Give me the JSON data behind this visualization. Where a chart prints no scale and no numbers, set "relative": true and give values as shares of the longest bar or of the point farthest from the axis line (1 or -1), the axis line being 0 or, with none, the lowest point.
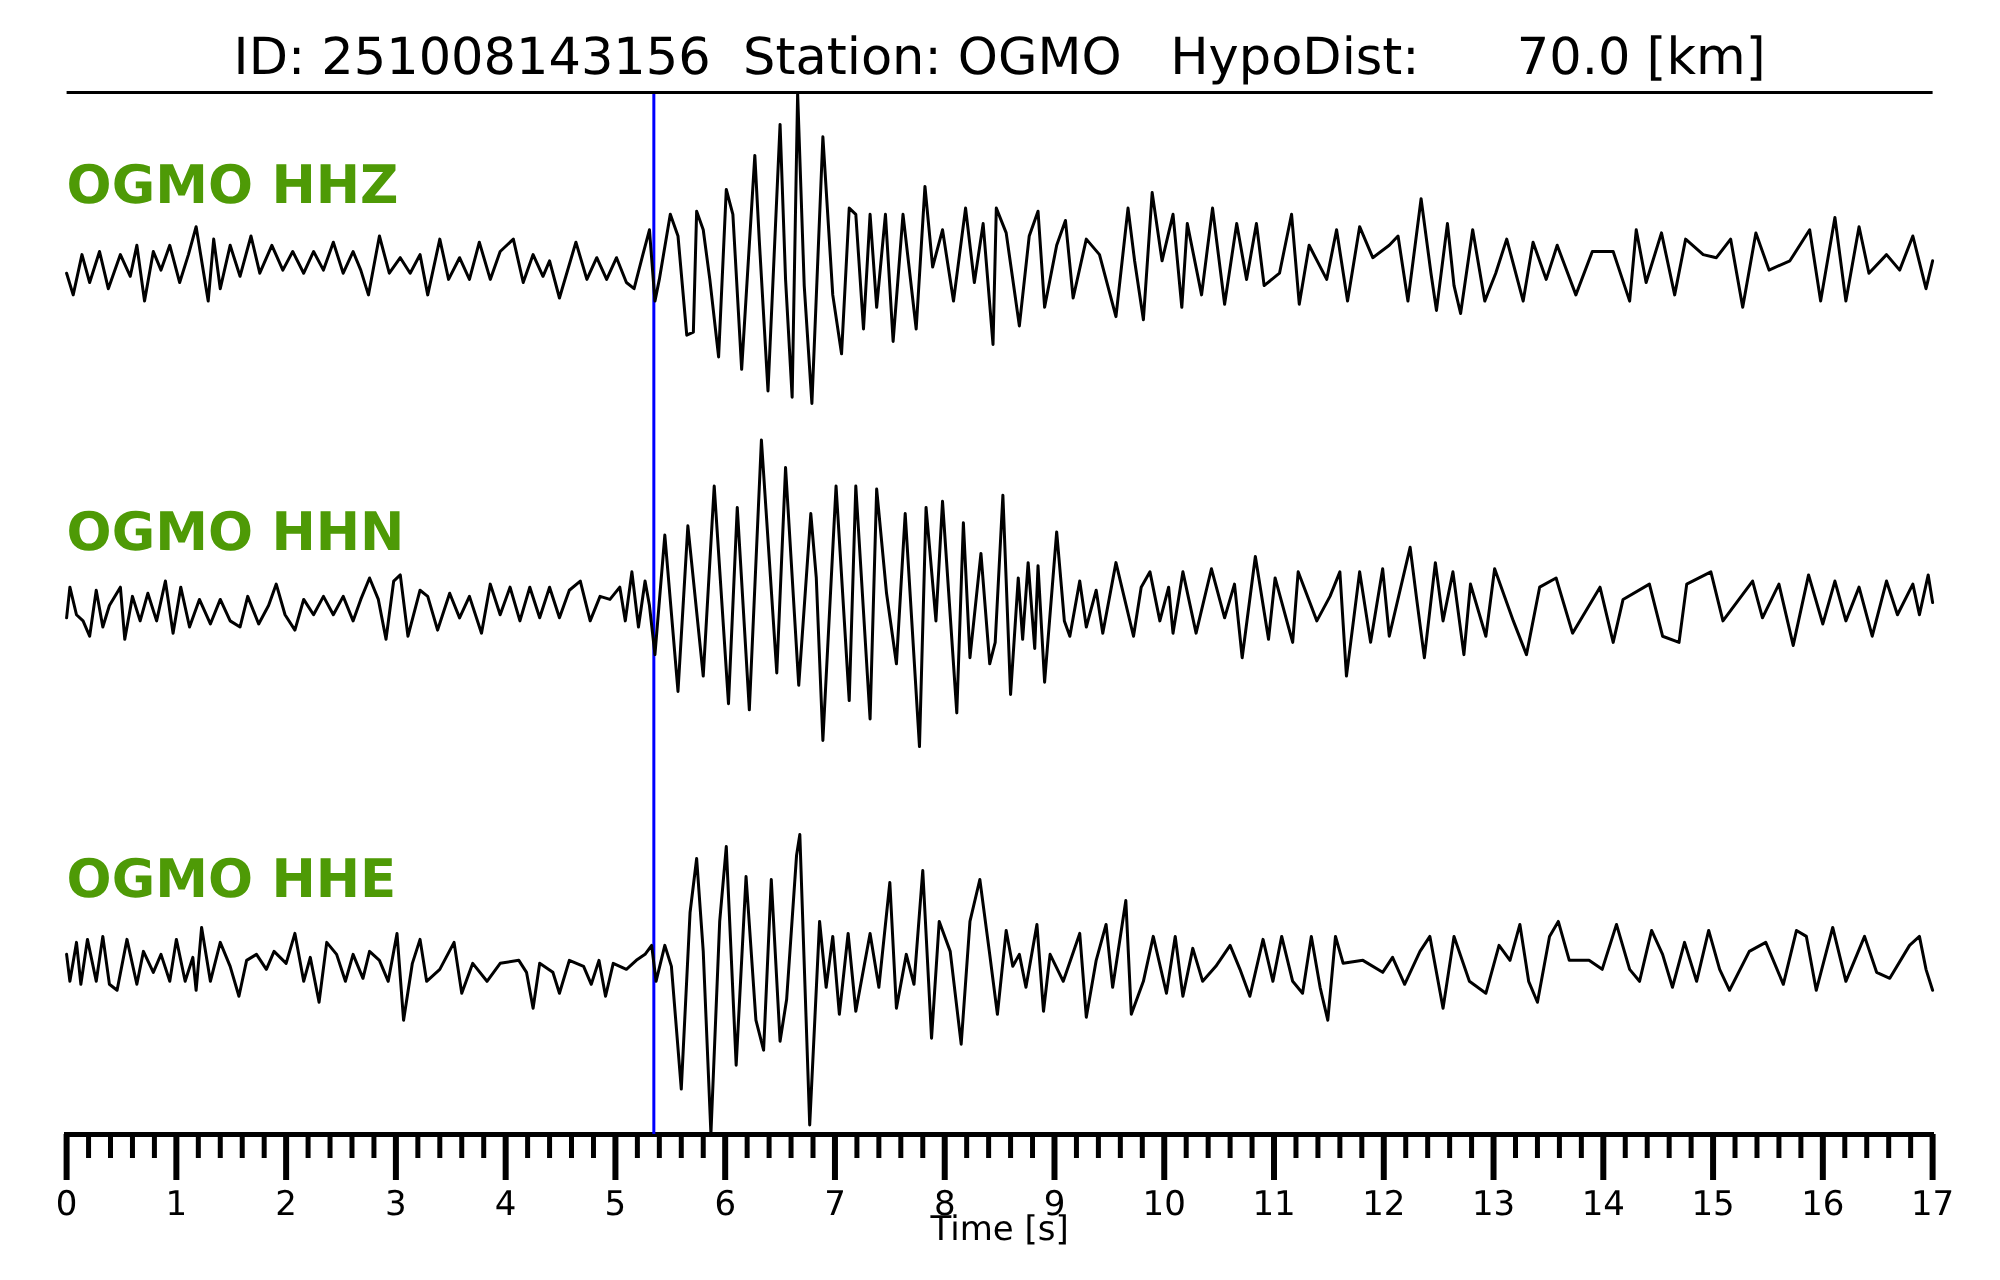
{
  "chart_data": [
    {
      "type": "line",
      "title": "ID: 251008143156  Station: OGMO   HypoDist:      70.0 [km]",
      "relative": true,
      "xlim": [
        0,
        17
      ],
      "tick_labels": false,
      "ref_lines": [
        {
          "axis": "x",
          "value": 5.35,
          "color": "#0000ff"
        }
      ],
      "series": [
        {
          "name": "OGMO HHZ",
          "color": "#000000",
          "x": [
            0,
            0.06,
            0.14,
            0.21,
            0.3,
            0.38,
            0.49,
            0.58,
            0.64,
            0.71,
            0.79,
            0.86,
            0.94,
            1.03,
            1.11,
            1.18,
            1.29,
            1.34,
            1.4,
            1.49,
            1.58,
            1.68,
            1.76,
            1.87,
            1.97,
            2.06,
            2.16,
            2.25,
            2.34,
            2.43,
            2.52,
            2.61,
            2.68,
            2.75,
            2.85,
            2.94,
            3.04,
            3.13,
            3.22,
            3.29,
            3.4,
            3.48,
            3.58,
            3.67,
            3.76,
            3.86,
            3.95,
            4.07,
            4.16,
            4.25,
            4.34,
            4.4,
            4.49,
            4.64,
            4.74,
            4.83,
            4.92,
            5.01,
            5.1,
            5.17,
            5.25,
            5.31,
            5.36,
            5.4,
            5.5,
            5.57,
            5.65,
            5.71,
            5.74,
            5.8,
            5.86,
            5.94,
            6.01,
            6.07,
            6.15,
            6.27,
            6.31,
            6.39,
            6.5,
            6.55,
            6.61,
            6.66,
            6.72,
            6.79,
            6.89,
            6.98,
            7.06,
            7.13,
            7.19,
            7.26,
            7.32,
            7.38,
            7.46,
            7.53,
            7.62,
            7.74,
            7.82,
            7.89,
            7.98,
            8.08,
            8.19,
            8.27,
            8.35,
            8.44,
            8.47,
            8.56,
            8.68,
            8.77,
            8.85,
            8.91,
            9.02,
            9.1,
            9.17,
            9.29,
            9.41,
            9.56,
            9.67,
            9.73,
            9.81,
            9.89,
            9.98,
            10.08,
            10.16,
            10.21,
            10.34,
            10.44,
            10.55,
            10.66,
            10.75,
            10.84,
            10.91,
            11.05,
            11.16,
            11.23,
            11.32,
            11.48,
            11.57,
            11.67,
            11.78,
            11.9,
            12.05,
            12.13,
            12.22,
            12.34,
            12.43,
            12.48,
            12.58,
            12.64,
            12.7,
            12.81,
            12.92,
            13.02,
            13.12,
            13.27,
            13.36,
            13.48,
            13.58,
            13.75,
            13.9,
            14.09,
            14.24,
            14.3,
            14.39,
            14.53,
            14.65,
            14.75,
            14.91,
            15.03,
            15.16,
            15.27,
            15.39,
            15.51,
            15.7,
            15.88,
            15.98,
            16.11,
            16.21,
            16.33,
            16.42,
            16.58,
            16.7,
            16.82,
            16.94,
            17
          ],
          "values": [
            0.42,
            0.35,
            0.48,
            0.39,
            0.49,
            0.37,
            0.48,
            0.41,
            0.51,
            0.33,
            0.49,
            0.43,
            0.51,
            0.39,
            0.48,
            0.57,
            0.33,
            0.53,
            0.37,
            0.51,
            0.41,
            0.54,
            0.42,
            0.51,
            0.43,
            0.49,
            0.42,
            0.49,
            0.43,
            0.52,
            0.42,
            0.49,
            0.43,
            0.35,
            0.54,
            0.42,
            0.47,
            0.42,
            0.48,
            0.35,
            0.53,
            0.4,
            0.47,
            0.4,
            0.52,
            0.4,
            0.49,
            0.53,
            0.39,
            0.48,
            0.41,
            0.46,
            0.34,
            0.52,
            0.4,
            0.47,
            0.4,
            0.47,
            0.39,
            0.37,
            0.48,
            0.56,
            0.33,
            0.4,
            0.61,
            0.54,
            0.22,
            0.23,
            0.62,
            0.56,
            0.4,
            0.15,
            0.69,
            0.61,
            0.11,
            0.8,
            0.53,
            0.04,
            0.9,
            0.4,
            0.02,
            1,
            0.38,
            0,
            0.86,
            0.35,
            0.16,
            0.63,
            0.61,
            0.24,
            0.61,
            0.31,
            0.61,
            0.2,
            0.61,
            0.24,
            0.7,
            0.44,
            0.56,
            0.33,
            0.63,
            0.39,
            0.58,
            0.19,
            0.63,
            0.55,
            0.25,
            0.54,
            0.62,
            0.31,
            0.51,
            0.59,
            0.34,
            0.53,
            0.48,
            0.28,
            0.63,
            0.46,
            0.27,
            0.68,
            0.46,
            0.61,
            0.31,
            0.58,
            0.35,
            0.63,
            0.32,
            0.58,
            0.4,
            0.58,
            0.38,
            0.42,
            0.61,
            0.32,
            0.51,
            0.4,
            0.56,
            0.33,
            0.57,
            0.47,
            0.51,
            0.54,
            0.33,
            0.66,
            0.42,
            0.3,
            0.58,
            0.38,
            0.29,
            0.56,
            0.33,
            0.42,
            0.53,
            0.33,
            0.52,
            0.4,
            0.51,
            0.35,
            0.49,
            0.49,
            0.33,
            0.56,
            0.39,
            0.55,
            0.35,
            0.53,
            0.48,
            0.47,
            0.53,
            0.31,
            0.55,
            0.43,
            0.46,
            0.56,
            0.33,
            0.6,
            0.33,
            0.57,
            0.42,
            0.48,
            0.43,
            0.54,
            0.37,
            0.46
          ]
        }
      ]
    },
    {
      "type": "line",
      "relative": true,
      "xlim": [
        0,
        17
      ],
      "tick_labels": false,
      "ref_lines": [
        {
          "axis": "x",
          "value": 5.35,
          "color": "#0000ff"
        }
      ],
      "series": [
        {
          "name": "OGMO HHN",
          "color": "#000000",
          "x": [
            0,
            0.03,
            0.09,
            0.15,
            0.21,
            0.27,
            0.33,
            0.39,
            0.49,
            0.53,
            0.6,
            0.67,
            0.74,
            0.82,
            0.9,
            0.97,
            1.04,
            1.12,
            1.21,
            1.31,
            1.4,
            1.49,
            1.58,
            1.65,
            1.75,
            1.84,
            1.91,
            1.99,
            2.08,
            2.16,
            2.25,
            2.34,
            2.43,
            2.52,
            2.61,
            2.68,
            2.76,
            2.84,
            2.91,
            2.98,
            3.04,
            3.11,
            3.22,
            3.29,
            3.38,
            3.49,
            3.58,
            3.67,
            3.78,
            3.86,
            3.95,
            4.04,
            4.13,
            4.22,
            4.31,
            4.4,
            4.49,
            4.58,
            4.68,
            4.77,
            4.86,
            4.95,
            5.04,
            5.09,
            5.15,
            5.21,
            5.27,
            5.31,
            5.36,
            5.45,
            5.57,
            5.66,
            5.8,
            5.9,
            6.03,
            6.11,
            6.22,
            6.33,
            6.47,
            6.55,
            6.67,
            6.78,
            6.83,
            6.89,
            7.01,
            7.13,
            7.19,
            7.32,
            7.38,
            7.47,
            7.56,
            7.64,
            7.77,
            7.83,
            7.92,
            7.98,
            8.11,
            8.17,
            8.23,
            8.33,
            8.41,
            8.46,
            8.53,
            8.6,
            8.67,
            8.71,
            8.76,
            8.82,
            8.85,
            8.91,
            9.02,
            9.09,
            9.14,
            9.23,
            9.29,
            9.38,
            9.44,
            9.56,
            9.72,
            9.79,
            9.87,
            9.96,
            10.04,
            10.08,
            10.17,
            10.29,
            10.43,
            10.55,
            10.64,
            10.71,
            10.83,
            10.95,
            11.01,
            11.17,
            11.22,
            11.39,
            11.51,
            11.6,
            11.66,
            11.78,
            11.88,
            11.99,
            12.05,
            12.24,
            12.3,
            12.37,
            12.47,
            12.54,
            12.63,
            12.73,
            12.79,
            12.93,
            13.01,
            13.18,
            13.3,
            13.42,
            13.57,
            13.72,
            13.97,
            14.09,
            14.18,
            14.42,
            14.54,
            14.69,
            14.76,
            14.98,
            15.09,
            15.36,
            15.45,
            15.6,
            15.73,
            15.87,
            16,
            16.11,
            16.21,
            16.33,
            16.45,
            16.58,
            16.68,
            16.82,
            16.88,
            16.96,
            17
          ],
          "values": [
            0.42,
            0.52,
            0.43,
            0.41,
            0.36,
            0.51,
            0.39,
            0.46,
            0.52,
            0.35,
            0.49,
            0.41,
            0.5,
            0.41,
            0.54,
            0.37,
            0.52,
            0.39,
            0.48,
            0.4,
            0.48,
            0.41,
            0.39,
            0.49,
            0.4,
            0.46,
            0.53,
            0.43,
            0.38,
            0.48,
            0.43,
            0.49,
            0.43,
            0.49,
            0.41,
            0.48,
            0.55,
            0.48,
            0.35,
            0.54,
            0.56,
            0.36,
            0.51,
            0.49,
            0.38,
            0.5,
            0.42,
            0.49,
            0.37,
            0.53,
            0.43,
            0.52,
            0.41,
            0.52,
            0.42,
            0.52,
            0.42,
            0.51,
            0.54,
            0.41,
            0.49,
            0.48,
            0.52,
            0.41,
            0.57,
            0.39,
            0.54,
            0.46,
            0.3,
            0.69,
            0.18,
            0.72,
            0.23,
            0.85,
            0.14,
            0.78,
            0.12,
            1,
            0.24,
            0.91,
            0.2,
            0.76,
            0.55,
            0.02,
            0.85,
            0.15,
            0.85,
            0.09,
            0.84,
            0.5,
            0.27,
            0.76,
            0,
            0.78,
            0.41,
            0.8,
            0.11,
            0.73,
            0.29,
            0.63,
            0.27,
            0.34,
            0.82,
            0.17,
            0.55,
            0.35,
            0.6,
            0.32,
            0.59,
            0.21,
            0.7,
            0.41,
            0.36,
            0.54,
            0.39,
            0.51,
            0.37,
            0.6,
            0.36,
            0.52,
            0.57,
            0.41,
            0.52,
            0.37,
            0.57,
            0.37,
            0.58,
            0.42,
            0.53,
            0.29,
            0.62,
            0.35,
            0.55,
            0.34,
            0.57,
            0.41,
            0.49,
            0.57,
            0.23,
            0.57,
            0.34,
            0.58,
            0.36,
            0.65,
            0.48,
            0.29,
            0.6,
            0.41,
            0.57,
            0.3,
            0.53,
            0.36,
            0.58,
            0.41,
            0.3,
            0.52,
            0.55,
            0.37,
            0.52,
            0.34,
            0.48,
            0.53,
            0.36,
            0.34,
            0.53,
            0.57,
            0.41,
            0.54,
            0.42,
            0.53,
            0.33,
            0.56,
            0.4,
            0.54,
            0.41,
            0.52,
            0.36,
            0.54,
            0.43,
            0.53,
            0.43,
            0.56,
            0.47
          ]
        }
      ]
    },
    {
      "type": "line",
      "relative": true,
      "xlabel": "Time [s]",
      "xlim": [
        0,
        17
      ],
      "tick_labels": "x",
      "xticks": [
        0,
        {
          "value": 0.2,
          "label": null
        },
        {
          "value": 0.4,
          "label": null
        },
        {
          "value": 0.6,
          "label": null
        },
        {
          "value": 0.8,
          "label": null
        },
        1,
        {
          "value": 1.2,
          "label": null
        },
        {
          "value": 1.4,
          "label": null
        },
        {
          "value": 1.6,
          "label": null
        },
        {
          "value": 1.8,
          "label": null
        },
        2,
        {
          "value": 2.2,
          "label": null
        },
        {
          "value": 2.4,
          "label": null
        },
        {
          "value": 2.6,
          "label": null
        },
        {
          "value": 2.8,
          "label": null
        },
        3,
        {
          "value": 3.2,
          "label": null
        },
        {
          "value": 3.4,
          "label": null
        },
        {
          "value": 3.6,
          "label": null
        },
        {
          "value": 3.8,
          "label": null
        },
        4,
        {
          "value": 4.2,
          "label": null
        },
        {
          "value": 4.4,
          "label": null
        },
        {
          "value": 4.6,
          "label": null
        },
        {
          "value": 4.8,
          "label": null
        },
        5,
        {
          "value": 5.2,
          "label": null
        },
        {
          "value": 5.4,
          "label": null
        },
        {
          "value": 5.6,
          "label": null
        },
        {
          "value": 5.8,
          "label": null
        },
        6,
        {
          "value": 6.2,
          "label": null
        },
        {
          "value": 6.4,
          "label": null
        },
        {
          "value": 6.6,
          "label": null
        },
        {
          "value": 6.8,
          "label": null
        },
        7,
        {
          "value": 7.2,
          "label": null
        },
        {
          "value": 7.4,
          "label": null
        },
        {
          "value": 7.6,
          "label": null
        },
        {
          "value": 7.8,
          "label": null
        },
        8,
        {
          "value": 8.2,
          "label": null
        },
        {
          "value": 8.4,
          "label": null
        },
        {
          "value": 8.6,
          "label": null
        },
        {
          "value": 8.8,
          "label": null
        },
        9,
        {
          "value": 9.2,
          "label": null
        },
        {
          "value": 9.4,
          "label": null
        },
        {
          "value": 9.6,
          "label": null
        },
        {
          "value": 9.8,
          "label": null
        },
        10,
        {
          "value": 10.2,
          "label": null
        },
        {
          "value": 10.4,
          "label": null
        },
        {
          "value": 10.6,
          "label": null
        },
        {
          "value": 10.8,
          "label": null
        },
        11,
        {
          "value": 11.2,
          "label": null
        },
        {
          "value": 11.4,
          "label": null
        },
        {
          "value": 11.6,
          "label": null
        },
        {
          "value": 11.8,
          "label": null
        },
        12,
        {
          "value": 12.2,
          "label": null
        },
        {
          "value": 12.4,
          "label": null
        },
        {
          "value": 12.6,
          "label": null
        },
        {
          "value": 12.8,
          "label": null
        },
        13,
        {
          "value": 13.2,
          "label": null
        },
        {
          "value": 13.4,
          "label": null
        },
        {
          "value": 13.6,
          "label": null
        },
        {
          "value": 13.8,
          "label": null
        },
        14,
        {
          "value": 14.2,
          "label": null
        },
        {
          "value": 14.4,
          "label": null
        },
        {
          "value": 14.6,
          "label": null
        },
        {
          "value": 14.8,
          "label": null
        },
        15,
        {
          "value": 15.2,
          "label": null
        },
        {
          "value": 15.4,
          "label": null
        },
        {
          "value": 15.6,
          "label": null
        },
        {
          "value": 15.8,
          "label": null
        },
        16,
        {
          "value": 16.2,
          "label": null
        },
        {
          "value": 16.4,
          "label": null
        },
        {
          "value": 16.6,
          "label": null
        },
        {
          "value": 16.8,
          "label": null
        },
        17
      ],
      "ref_lines": [
        {
          "axis": "x",
          "value": 5.35,
          "color": "#0000ff"
        }
      ],
      "series": [
        {
          "name": "OGMO HHE",
          "color": "#000000",
          "x": [
            0,
            0.03,
            0.09,
            0.13,
            0.19,
            0.27,
            0.33,
            0.39,
            0.46,
            0.55,
            0.64,
            0.7,
            0.79,
            0.86,
            0.94,
            1,
            1.08,
            1.15,
            1.18,
            1.23,
            1.31,
            1.4,
            1.49,
            1.57,
            1.64,
            1.73,
            1.82,
            1.89,
            2,
            2.08,
            2.16,
            2.22,
            2.3,
            2.37,
            2.46,
            2.54,
            2.61,
            2.7,
            2.76,
            2.85,
            2.93,
            3.01,
            3.07,
            3.15,
            3.22,
            3.28,
            3.4,
            3.53,
            3.6,
            3.7,
            3.83,
            3.95,
            4.12,
            4.19,
            4.25,
            4.31,
            4.43,
            4.49,
            4.58,
            4.71,
            4.78,
            4.85,
            4.91,
            4.98,
            5.1,
            5.19,
            5.27,
            5.33,
            5.37,
            5.45,
            5.51,
            5.6,
            5.68,
            5.74,
            5.8,
            5.87,
            5.95,
            6.01,
            6.1,
            6.19,
            6.28,
            6.35,
            6.42,
            6.5,
            6.56,
            6.65,
            6.68,
            6.77,
            6.86,
            6.92,
            6.98,
            7.04,
            7.12,
            7.19,
            7.32,
            7.4,
            7.5,
            7.56,
            7.65,
            7.72,
            7.8,
            7.88,
            7.95,
            8.05,
            8.15,
            8.23,
            8.32,
            8.41,
            8.48,
            8.56,
            8.62,
            8.68,
            8.74,
            8.84,
            8.9,
            8.96,
            9.08,
            9.23,
            9.29,
            9.38,
            9.47,
            9.53,
            9.65,
            9.7,
            9.81,
            9.9,
            10.02,
            10.1,
            10.17,
            10.26,
            10.35,
            10.47,
            10.6,
            10.69,
            10.78,
            10.9,
            10.99,
            11.07,
            11.17,
            11.26,
            11.34,
            11.42,
            11.49,
            11.56,
            11.63,
            11.81,
            11.99,
            12.08,
            12.19,
            12.33,
            12.42,
            12.54,
            12.64,
            12.78,
            12.93,
            13.05,
            13.15,
            13.24,
            13.32,
            13.4,
            13.51,
            13.59,
            13.69,
            13.87,
            13.99,
            14.12,
            14.24,
            14.33,
            14.44,
            14.54,
            14.63,
            14.74,
            14.85,
            14.96,
            15.06,
            15.15,
            15.33,
            15.48,
            15.64,
            15.76,
            15.85,
            15.94,
            16.09,
            16.21,
            16.38,
            16.49,
            16.61,
            16.79,
            16.88,
            16.94,
            17
          ],
          "values": [
            0.6,
            0.51,
            0.64,
            0.5,
            0.65,
            0.51,
            0.66,
            0.5,
            0.48,
            0.65,
            0.5,
            0.61,
            0.54,
            0.6,
            0.51,
            0.65,
            0.51,
            0.59,
            0.48,
            0.69,
            0.51,
            0.64,
            0.56,
            0.46,
            0.58,
            0.6,
            0.55,
            0.61,
            0.57,
            0.67,
            0.51,
            0.59,
            0.44,
            0.64,
            0.6,
            0.51,
            0.6,
            0.52,
            0.61,
            0.58,
            0.51,
            0.67,
            0.38,
            0.57,
            0.65,
            0.51,
            0.55,
            0.64,
            0.47,
            0.57,
            0.51,
            0.57,
            0.58,
            0.54,
            0.42,
            0.57,
            0.54,
            0.47,
            0.58,
            0.56,
            0.5,
            0.58,
            0.46,
            0.57,
            0.55,
            0.58,
            0.6,
            0.63,
            0.51,
            0.63,
            0.56,
            0.15,
            0.74,
            0.92,
            0.61,
            0,
            0.71,
            0.96,
            0.23,
            0.86,
            0.38,
            0.28,
            0.85,
            0.31,
            0.45,
            0.93,
            1,
            0.03,
            0.71,
            0.49,
            0.66,
            0.4,
            0.67,
            0.41,
            0.67,
            0.49,
            0.84,
            0.42,
            0.6,
            0.5,
            0.88,
            0.32,
            0.71,
            0.61,
            0.3,
            0.71,
            0.85,
            0.6,
            0.4,
            0.68,
            0.56,
            0.6,
            0.49,
            0.7,
            0.41,
            0.6,
            0.51,
            0.67,
            0.39,
            0.58,
            0.7,
            0.49,
            0.78,
            0.4,
            0.51,
            0.66,
            0.47,
            0.66,
            0.46,
            0.62,
            0.51,
            0.56,
            0.63,
            0.55,
            0.46,
            0.65,
            0.51,
            0.66,
            0.51,
            0.47,
            0.66,
            0.49,
            0.38,
            0.66,
            0.57,
            0.58,
            0.54,
            0.59,
            0.5,
            0.61,
            0.66,
            0.42,
            0.66,
            0.51,
            0.47,
            0.63,
            0.58,
            0.7,
            0.51,
            0.44,
            0.66,
            0.71,
            0.58,
            0.58,
            0.55,
            0.7,
            0.55,
            0.51,
            0.68,
            0.6,
            0.49,
            0.64,
            0.51,
            0.68,
            0.55,
            0.48,
            0.61,
            0.64,
            0.5,
            0.68,
            0.66,
            0.48,
            0.69,
            0.51,
            0.66,
            0.54,
            0.52,
            0.63,
            0.66,
            0.55,
            0.48
          ]
        }
      ]
    }
  ]
}
